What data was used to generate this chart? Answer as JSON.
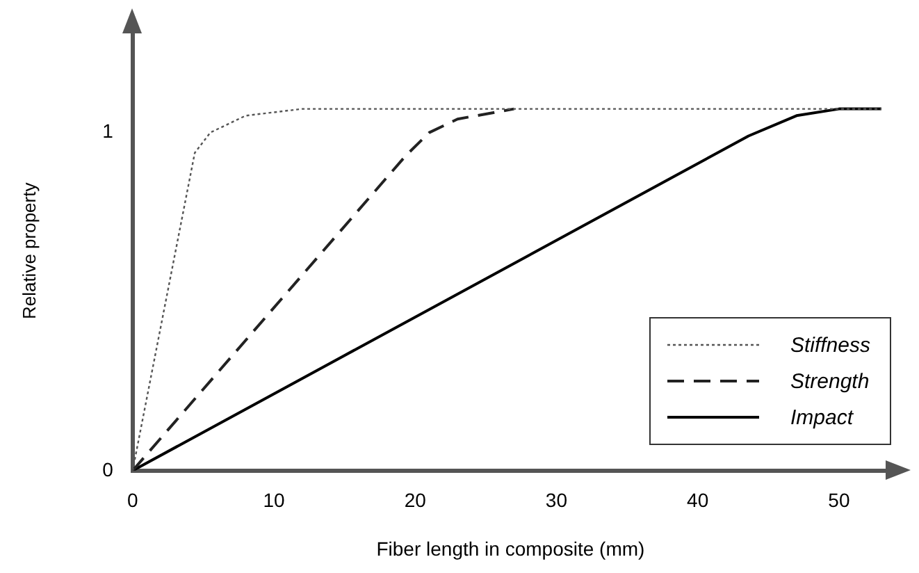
{
  "chart_data": {
    "type": "line",
    "xlabel": "Fiber length in composite (mm)",
    "ylabel": "Relative property",
    "xlim": [
      0,
      53.5
    ],
    "xticks": [
      0,
      10,
      20,
      30,
      40,
      50
    ],
    "ylim": [
      0,
      1.3
    ],
    "yticks": [
      0,
      1
    ],
    "grid": false,
    "legend": "bottom right",
    "marker": "none",
    "series": [
      {
        "name": "Stiffness",
        "color": "#555555",
        "line_style": "dotted",
        "x": [
          0,
          4.4,
          5.5,
          8,
          12,
          53
        ],
        "values": [
          0,
          0.94,
          1.0,
          1.05,
          1.07,
          1.07
        ]
      },
      {
        "name": "Strength",
        "color": "#222222",
        "line_style": "dashed",
        "x": [
          0,
          19.3,
          21,
          23,
          27
        ],
        "values": [
          0,
          0.93,
          1.0,
          1.04,
          1.07
        ]
      },
      {
        "name": "Impact",
        "color": "#000000",
        "line_style": "solid",
        "x": [
          0,
          43.6,
          47,
          50,
          53
        ],
        "values": [
          0,
          0.99,
          1.05,
          1.07,
          1.07
        ]
      }
    ]
  }
}
